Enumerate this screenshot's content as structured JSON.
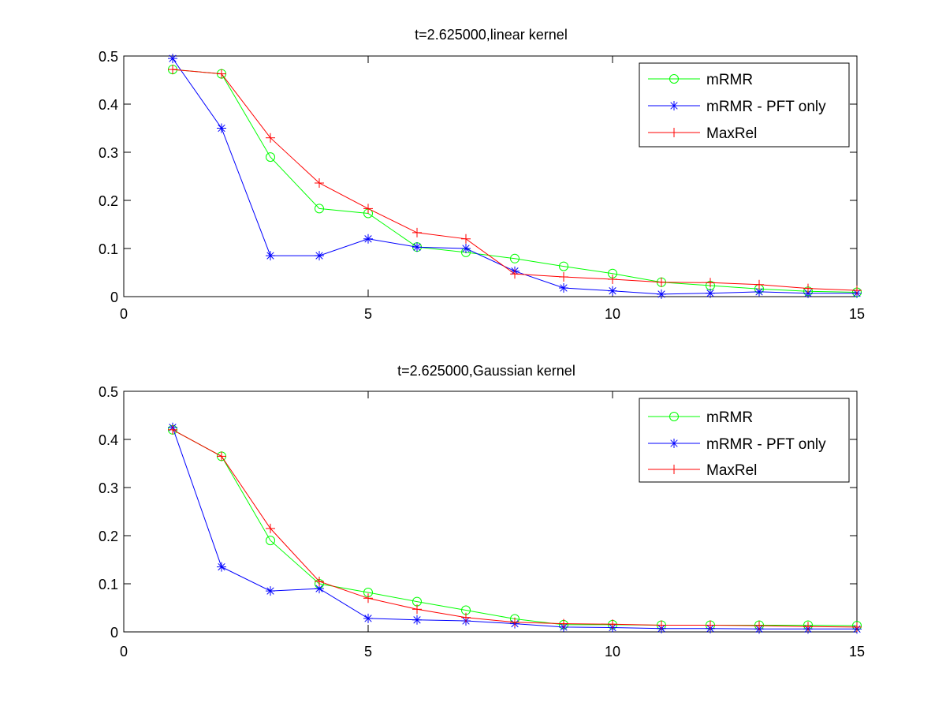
{
  "chart_data": [
    {
      "type": "line",
      "title": "t=2.625000,linear kernel",
      "xlabel": "",
      "ylabel": "",
      "xlim": [
        0,
        15
      ],
      "ylim": [
        0,
        0.5
      ],
      "xticks": [
        "0",
        "5",
        "10",
        "15"
      ],
      "yticks": [
        "0",
        "0.1",
        "0.2",
        "0.3",
        "0.4",
        "0.5"
      ],
      "grid": false,
      "legend_position": "top-right",
      "x": [
        1,
        2,
        3,
        4,
        5,
        6,
        7,
        8,
        9,
        10,
        11,
        12,
        13,
        14,
        15
      ],
      "series": [
        {
          "name": "mRMR",
          "color": "#00ff00",
          "marker": "circle",
          "values": [
            0.472,
            0.463,
            0.29,
            0.183,
            0.173,
            0.103,
            0.092,
            0.079,
            0.063,
            0.048,
            0.03,
            0.023,
            0.016,
            0.011,
            0.009
          ]
        },
        {
          "name": "mRMR - PFT only",
          "color": "#0000ff",
          "marker": "star",
          "values": [
            0.495,
            0.35,
            0.085,
            0.085,
            0.12,
            0.103,
            0.1,
            0.053,
            0.018,
            0.012,
            0.005,
            0.007,
            0.01,
            0.007,
            0.007
          ]
        },
        {
          "name": "MaxRel",
          "color": "#ff0000",
          "marker": "plus",
          "values": [
            0.472,
            0.463,
            0.33,
            0.236,
            0.183,
            0.133,
            0.12,
            0.047,
            0.041,
            0.036,
            0.03,
            0.029,
            0.025,
            0.017,
            0.013
          ]
        }
      ]
    },
    {
      "type": "line",
      "title": "t=2.625000,Gaussian kernel",
      "xlabel": "",
      "ylabel": "",
      "xlim": [
        0,
        15
      ],
      "ylim": [
        0,
        0.5
      ],
      "xticks": [
        "0",
        "5",
        "10",
        "15"
      ],
      "yticks": [
        "0",
        "0.1",
        "0.2",
        "0.3",
        "0.4",
        "0.5"
      ],
      "grid": false,
      "legend_position": "top-right",
      "x": [
        1,
        2,
        3,
        4,
        5,
        6,
        7,
        8,
        9,
        10,
        11,
        12,
        13,
        14,
        15
      ],
      "series": [
        {
          "name": "mRMR",
          "color": "#00ff00",
          "marker": "circle",
          "values": [
            0.42,
            0.365,
            0.19,
            0.1,
            0.082,
            0.063,
            0.045,
            0.027,
            0.015,
            0.015,
            0.014,
            0.014,
            0.014,
            0.014,
            0.013
          ]
        },
        {
          "name": "mRMR - PFT only",
          "color": "#0000ff",
          "marker": "star",
          "values": [
            0.425,
            0.135,
            0.085,
            0.09,
            0.028,
            0.025,
            0.023,
            0.017,
            0.01,
            0.009,
            0.007,
            0.007,
            0.006,
            0.006,
            0.006
          ]
        },
        {
          "name": "MaxRel",
          "color": "#ff0000",
          "marker": "plus",
          "values": [
            0.42,
            0.365,
            0.215,
            0.105,
            0.07,
            0.047,
            0.03,
            0.02,
            0.017,
            0.016,
            0.014,
            0.014,
            0.013,
            0.011,
            0.01
          ]
        }
      ]
    }
  ]
}
